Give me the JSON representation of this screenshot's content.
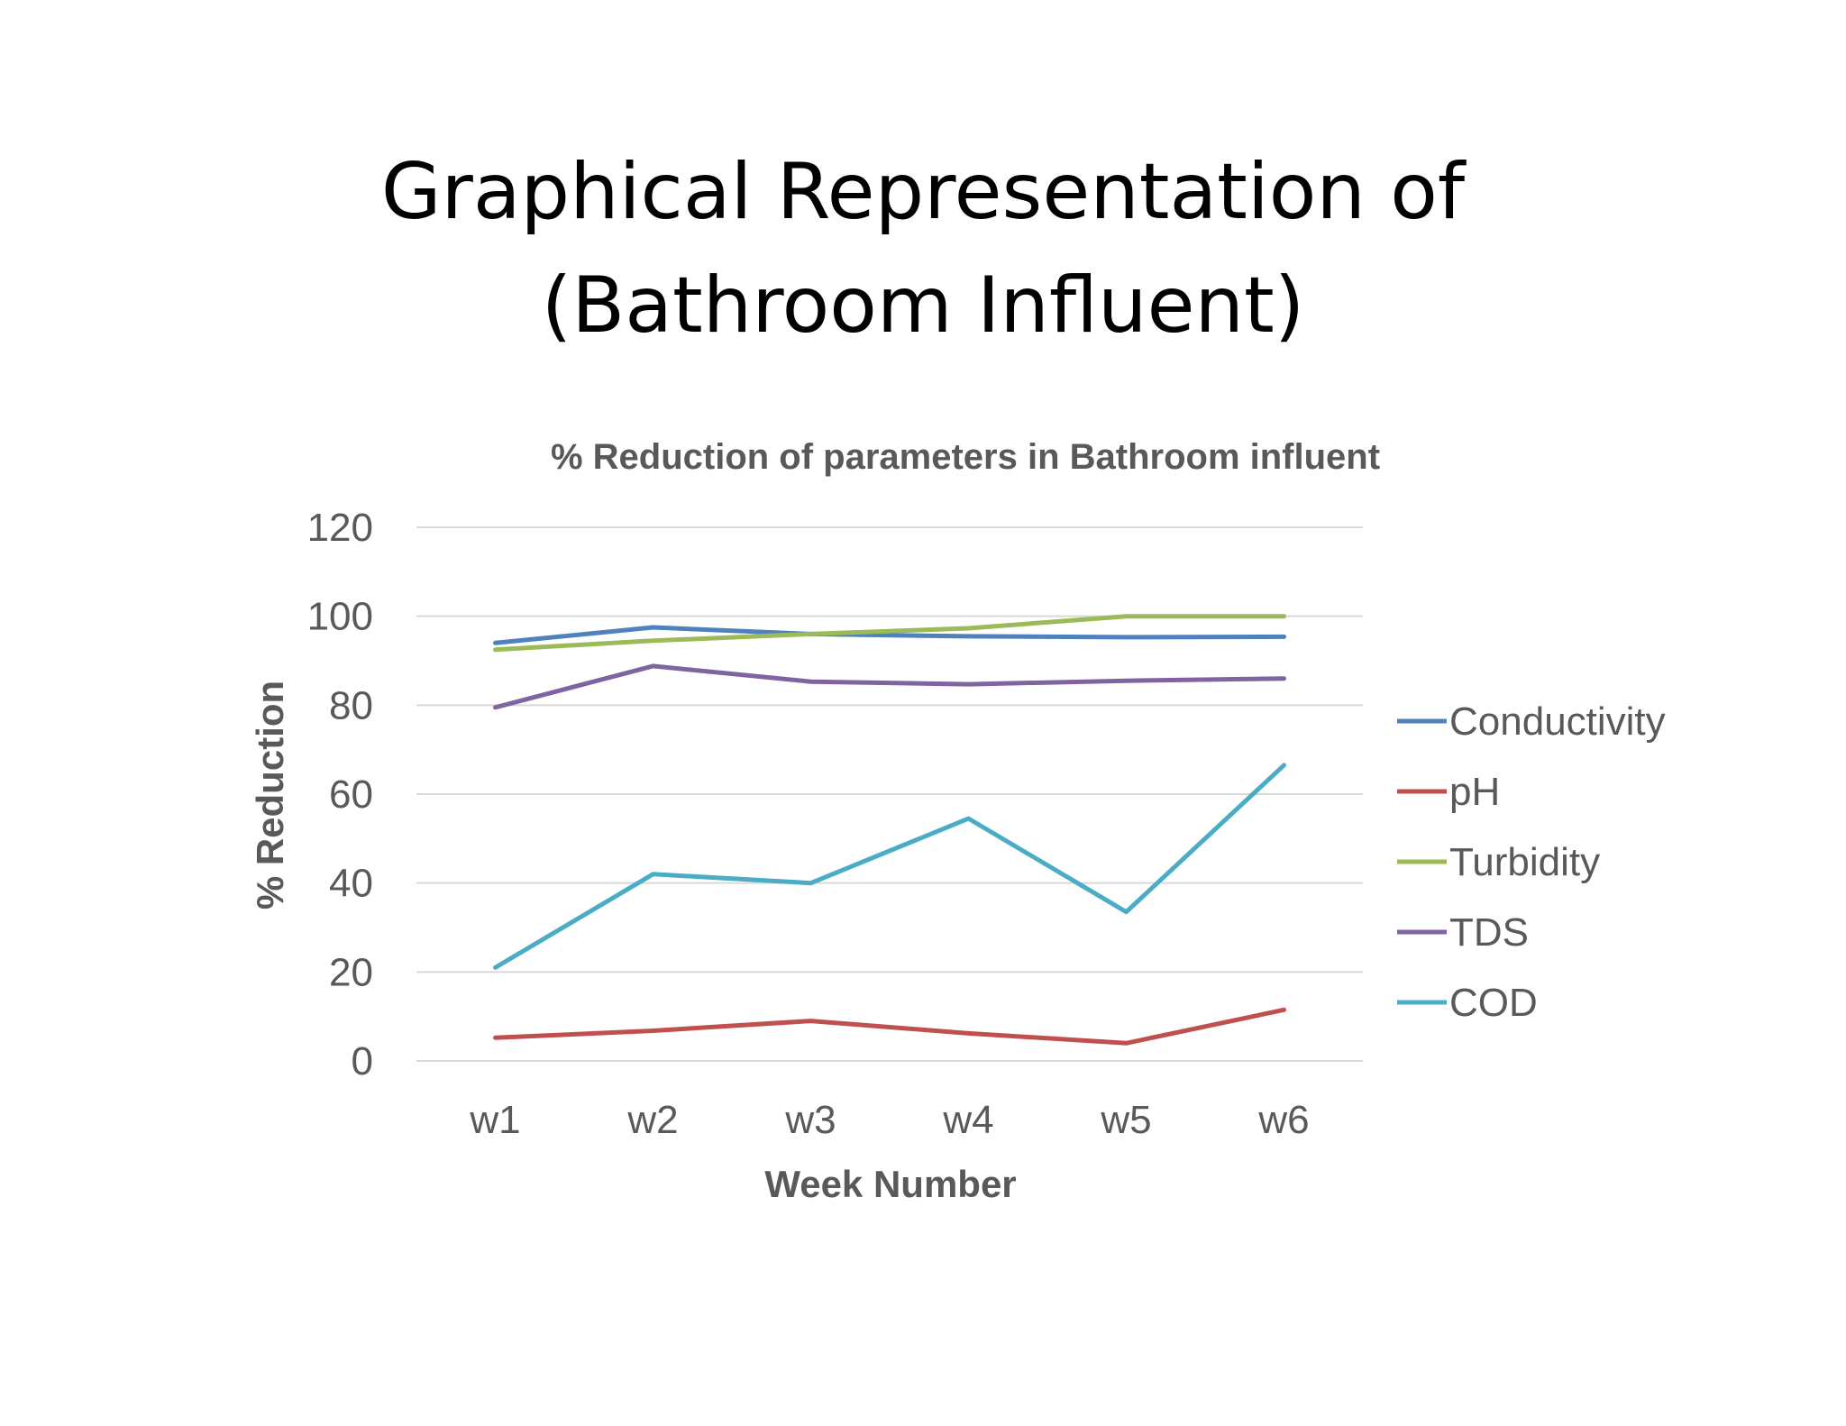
{
  "slide": {
    "title_line1": "Graphical Representation of",
    "title_line2": "(Bathroom Influent)"
  },
  "chart_data": {
    "type": "line",
    "title": "% Reduction of parameters in Bathroom influent",
    "xlabel": "Week Number",
    "ylabel": "% Reduction",
    "categories": [
      "w1",
      "w2",
      "w3",
      "w4",
      "w5",
      "w6"
    ],
    "ylim": [
      0,
      120
    ],
    "yticks": [
      0,
      20,
      40,
      60,
      80,
      100,
      120
    ],
    "grid": true,
    "legend_position": "right",
    "series": [
      {
        "name": "Conductivity",
        "color": "#4F81BD",
        "values": [
          94,
          97.5,
          96,
          95.5,
          95.3,
          95.4
        ]
      },
      {
        "name": "pH",
        "color": "#C0504D",
        "values": [
          5.2,
          6.8,
          9,
          6.2,
          4,
          11.5
        ]
      },
      {
        "name": "Turbidity",
        "color": "#9BBB59",
        "values": [
          92.5,
          94.5,
          96,
          97.3,
          100,
          100
        ]
      },
      {
        "name": "TDS",
        "color": "#8064A2",
        "values": [
          79.5,
          88.8,
          85.3,
          84.7,
          85.5,
          86
        ]
      },
      {
        "name": "COD",
        "color": "#4BACC6",
        "values": [
          21,
          42,
          40,
          54.5,
          33.5,
          66.5
        ]
      }
    ]
  }
}
